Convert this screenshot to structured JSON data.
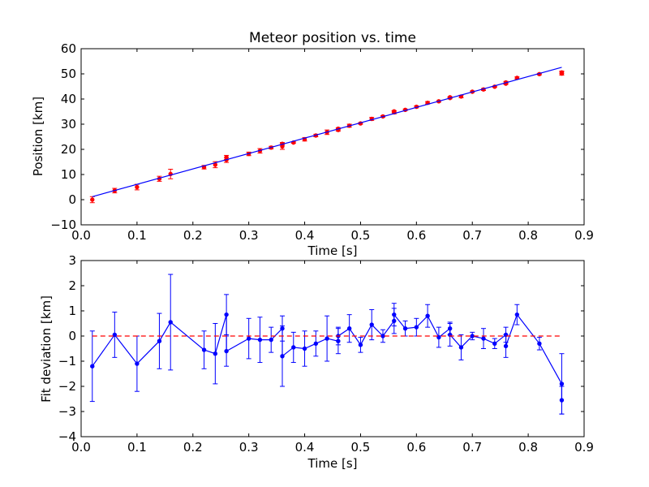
{
  "colors": {
    "fit_line": "#0000ff",
    "position_points": "#ff0000",
    "deviation_series": "#0000ff",
    "zero_line": "#ff0000"
  },
  "chart_data": [
    {
      "type": "scatter",
      "title": "Meteor position vs. time",
      "xlabel": "Time [s]",
      "ylabel": "Position [km]",
      "xlim": [
        0.0,
        0.9
      ],
      "ylim": [
        -10,
        60
      ],
      "xticks": [
        "0.0",
        "0.1",
        "0.2",
        "0.3",
        "0.4",
        "0.5",
        "0.6",
        "0.7",
        "0.8",
        "0.9"
      ],
      "yticks": [
        "−10",
        "0",
        "10",
        "20",
        "30",
        "40",
        "50",
        "60"
      ],
      "grid": false,
      "series": [
        {
          "kind": "errorbar",
          "x": [
            0.02,
            0.06,
            0.1,
            0.14,
            0.16,
            0.22,
            0.24,
            0.26,
            0.26,
            0.3,
            0.32,
            0.34,
            0.36,
            0.36,
            0.38,
            0.4,
            0.42,
            0.44,
            0.46,
            0.46,
            0.48,
            0.5,
            0.52,
            0.54,
            0.56,
            0.56,
            0.58,
            0.6,
            0.62,
            0.64,
            0.66,
            0.66,
            0.68,
            0.7,
            0.72,
            0.74,
            0.76,
            0.76,
            0.78,
            0.82,
            0.86,
            0.86
          ],
          "y": [
            0.0,
            3.6,
            5.0,
            8.3,
            10.2,
            12.9,
            13.9,
            15.8,
            16.8,
            18.2,
            19.4,
            20.7,
            21.2,
            22.2,
            22.7,
            24.0,
            25.5,
            26.8,
            27.7,
            28.2,
            29.4,
            30.3,
            32.1,
            33.1,
            34.7,
            35.1,
            35.7,
            36.9,
            38.5,
            39.1,
            40.4,
            40.7,
            41.0,
            42.9,
            43.8,
            44.9,
            46.1,
            46.6,
            48.4,
            49.9,
            50.1,
            50.6
          ],
          "err": [
            1.2,
            0.9,
            1.1,
            1.0,
            1.9,
            0.7,
            1.2,
            1.0,
            0.8,
            0.7,
            0.9,
            0.5,
            1.2,
            0.5,
            0.3,
            0.7,
            0.5,
            0.9,
            0.5,
            0.4,
            0.6,
            0.3,
            0.6,
            0.3,
            0.6,
            0.3,
            0.3,
            0.4,
            0.5,
            0.3,
            0.3,
            0.2,
            0.5,
            0.3,
            0.4,
            0.2,
            0.3,
            0.4,
            0.4,
            0.3,
            0.6,
            0.5
          ]
        },
        {
          "kind": "line",
          "x": [
            0.02,
            0.86
          ],
          "y": [
            1.2,
            52.6
          ]
        }
      ]
    },
    {
      "type": "line",
      "title": "",
      "xlabel": "Time [s]",
      "ylabel": "Fit deviation [km]",
      "xlim": [
        0.0,
        0.9
      ],
      "ylim": [
        -4,
        3
      ],
      "xticks": [
        "0.0",
        "0.1",
        "0.2",
        "0.3",
        "0.4",
        "0.5",
        "0.6",
        "0.7",
        "0.8",
        "0.9"
      ],
      "yticks": [
        "−4",
        "−3",
        "−2",
        "−1",
        "0",
        "1",
        "2",
        "3"
      ],
      "grid": false,
      "series": [
        {
          "kind": "errorbar-line",
          "x": [
            0.02,
            0.06,
            0.1,
            0.14,
            0.16,
            0.22,
            0.24,
            0.26,
            0.26,
            0.3,
            0.32,
            0.34,
            0.36,
            0.36,
            0.38,
            0.4,
            0.42,
            0.44,
            0.46,
            0.46,
            0.48,
            0.5,
            0.52,
            0.54,
            0.56,
            0.56,
            0.58,
            0.6,
            0.62,
            0.64,
            0.66,
            0.66,
            0.68,
            0.7,
            0.72,
            0.74,
            0.76,
            0.76,
            0.78,
            0.82,
            0.86,
            0.86
          ],
          "y": [
            -1.2,
            0.05,
            -1.1,
            -0.2,
            0.55,
            -0.55,
            -0.7,
            0.85,
            -0.6,
            -0.1,
            -0.15,
            -0.15,
            0.3,
            -0.8,
            -0.45,
            -0.5,
            -0.3,
            -0.1,
            -0.2,
            0.0,
            0.3,
            -0.35,
            0.45,
            0.0,
            0.6,
            0.85,
            0.3,
            0.35,
            0.8,
            -0.05,
            0.3,
            0.05,
            -0.45,
            0.0,
            -0.1,
            -0.3,
            0.05,
            -0.4,
            0.85,
            -0.3,
            -1.9,
            -2.55
          ],
          "err": [
            1.4,
            0.9,
            1.1,
            1.1,
            1.9,
            0.75,
            1.2,
            0.8,
            0.6,
            0.8,
            0.9,
            0.5,
            0.5,
            1.2,
            0.6,
            0.7,
            0.5,
            0.9,
            0.5,
            0.35,
            0.55,
            0.3,
            0.6,
            0.25,
            0.5,
            0.45,
            0.3,
            0.35,
            0.45,
            0.4,
            0.25,
            0.45,
            0.5,
            0.15,
            0.4,
            0.2,
            0.3,
            0.45,
            0.4,
            0.25,
            1.2,
            0.55
          ]
        },
        {
          "kind": "dashed-line",
          "x": [
            0.02,
            0.86
          ],
          "y": [
            0,
            0
          ]
        }
      ]
    }
  ]
}
